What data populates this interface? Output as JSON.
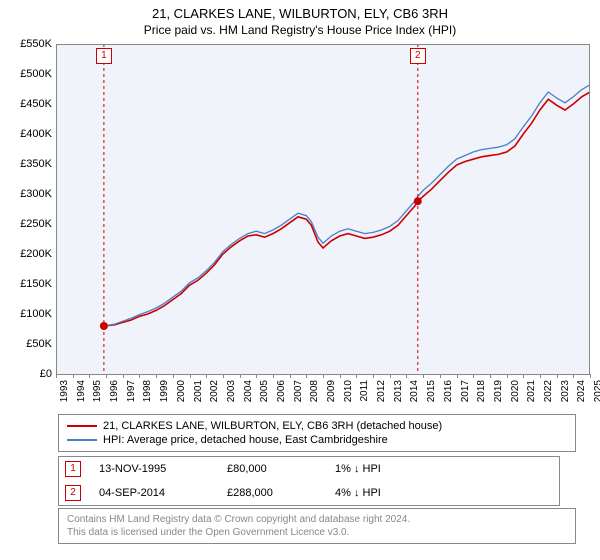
{
  "title": "21, CLARKES LANE, WILBURTON, ELY, CB6 3RH",
  "subtitle": "Price paid vs. HM Land Registry's House Price Index (HPI)",
  "chart": {
    "type": "line",
    "background_color": "#f0f4fa",
    "grid_color": "#e5e5e5",
    "axis_color": "#888888",
    "text_color": "#000000",
    "title_fontsize": 13,
    "subtitle_fontsize": 12,
    "tick_fontsize": 11,
    "x_tick_fontsize": 10,
    "ylim": [
      0,
      550000
    ],
    "ytick_step": 50000,
    "y_ticks": [
      "£0",
      "£50K",
      "£100K",
      "£150K",
      "£200K",
      "£250K",
      "£300K",
      "£350K",
      "£400K",
      "£450K",
      "£500K",
      "£550K"
    ],
    "xlim": [
      1993,
      2025
    ],
    "x_ticks": [
      1993,
      1994,
      1995,
      1996,
      1997,
      1998,
      1999,
      2000,
      2001,
      2002,
      2003,
      2004,
      2005,
      2006,
      2007,
      2008,
      2009,
      2010,
      2011,
      2012,
      2013,
      2014,
      2015,
      2016,
      2017,
      2018,
      2019,
      2020,
      2021,
      2022,
      2023,
      2024,
      2025
    ],
    "series": [
      {
        "name": "21, CLARKES LANE, WILBURTON, ELY, CB6 3RH (detached house)",
        "color": "#cc0000",
        "line_width": 1.6,
        "data": [
          [
            1995.87,
            80000
          ],
          [
            1996.5,
            82000
          ],
          [
            1997,
            86000
          ],
          [
            1997.5,
            90000
          ],
          [
            1998,
            96000
          ],
          [
            1998.5,
            100000
          ],
          [
            1999,
            106000
          ],
          [
            1999.5,
            114000
          ],
          [
            2000,
            124000
          ],
          [
            2000.5,
            134000
          ],
          [
            2001,
            148000
          ],
          [
            2001.5,
            156000
          ],
          [
            2002,
            168000
          ],
          [
            2002.5,
            182000
          ],
          [
            2003,
            200000
          ],
          [
            2003.5,
            212000
          ],
          [
            2004,
            222000
          ],
          [
            2004.5,
            230000
          ],
          [
            2005,
            232000
          ],
          [
            2005.5,
            228000
          ],
          [
            2006,
            234000
          ],
          [
            2006.5,
            242000
          ],
          [
            2007,
            252000
          ],
          [
            2007.5,
            262000
          ],
          [
            2008,
            258000
          ],
          [
            2008.3,
            248000
          ],
          [
            2008.7,
            220000
          ],
          [
            2009,
            210000
          ],
          [
            2009.5,
            222000
          ],
          [
            2010,
            230000
          ],
          [
            2010.5,
            234000
          ],
          [
            2011,
            230000
          ],
          [
            2011.5,
            226000
          ],
          [
            2012,
            228000
          ],
          [
            2012.5,
            232000
          ],
          [
            2013,
            238000
          ],
          [
            2013.5,
            248000
          ],
          [
            2014,
            264000
          ],
          [
            2014.5,
            280000
          ],
          [
            2014.68,
            288000
          ],
          [
            2015,
            296000
          ],
          [
            2015.5,
            308000
          ],
          [
            2016,
            322000
          ],
          [
            2016.5,
            336000
          ],
          [
            2017,
            348000
          ],
          [
            2017.5,
            354000
          ],
          [
            2018,
            358000
          ],
          [
            2018.5,
            362000
          ],
          [
            2019,
            364000
          ],
          [
            2019.5,
            366000
          ],
          [
            2020,
            370000
          ],
          [
            2020.5,
            380000
          ],
          [
            2021,
            400000
          ],
          [
            2021.5,
            418000
          ],
          [
            2022,
            440000
          ],
          [
            2022.5,
            458000
          ],
          [
            2023,
            448000
          ],
          [
            2023.5,
            440000
          ],
          [
            2024,
            450000
          ],
          [
            2024.5,
            462000
          ],
          [
            2025,
            470000
          ]
        ]
      },
      {
        "name": "HPI: Average price, detached house, East Cambridgeshire",
        "color": "#4a7ec8",
        "line_width": 1.3,
        "data": [
          [
            1995.87,
            80000
          ],
          [
            1996.5,
            83000
          ],
          [
            1997,
            88000
          ],
          [
            1997.5,
            93000
          ],
          [
            1998,
            99000
          ],
          [
            1998.5,
            104000
          ],
          [
            1999,
            110000
          ],
          [
            1999.5,
            118000
          ],
          [
            2000,
            128000
          ],
          [
            2000.5,
            138000
          ],
          [
            2001,
            152000
          ],
          [
            2001.5,
            160000
          ],
          [
            2002,
            172000
          ],
          [
            2002.5,
            186000
          ],
          [
            2003,
            204000
          ],
          [
            2003.5,
            216000
          ],
          [
            2004,
            226000
          ],
          [
            2004.5,
            234000
          ],
          [
            2005,
            238000
          ],
          [
            2005.5,
            234000
          ],
          [
            2006,
            240000
          ],
          [
            2006.5,
            248000
          ],
          [
            2007,
            258000
          ],
          [
            2007.5,
            268000
          ],
          [
            2008,
            264000
          ],
          [
            2008.3,
            254000
          ],
          [
            2008.7,
            228000
          ],
          [
            2009,
            218000
          ],
          [
            2009.5,
            230000
          ],
          [
            2010,
            238000
          ],
          [
            2010.5,
            242000
          ],
          [
            2011,
            238000
          ],
          [
            2011.5,
            234000
          ],
          [
            2012,
            236000
          ],
          [
            2012.5,
            240000
          ],
          [
            2013,
            246000
          ],
          [
            2013.5,
            256000
          ],
          [
            2014,
            272000
          ],
          [
            2014.5,
            288000
          ],
          [
            2014.68,
            296000
          ],
          [
            2015,
            306000
          ],
          [
            2015.5,
            318000
          ],
          [
            2016,
            332000
          ],
          [
            2016.5,
            346000
          ],
          [
            2017,
            358000
          ],
          [
            2017.5,
            364000
          ],
          [
            2018,
            370000
          ],
          [
            2018.5,
            374000
          ],
          [
            2019,
            376000
          ],
          [
            2019.5,
            378000
          ],
          [
            2020,
            382000
          ],
          [
            2020.5,
            392000
          ],
          [
            2021,
            412000
          ],
          [
            2021.5,
            430000
          ],
          [
            2022,
            452000
          ],
          [
            2022.5,
            470000
          ],
          [
            2023,
            460000
          ],
          [
            2023.5,
            452000
          ],
          [
            2024,
            462000
          ],
          [
            2024.5,
            474000
          ],
          [
            2025,
            482000
          ]
        ]
      }
    ],
    "sale_markers": [
      {
        "label": "1",
        "x": 1995.87,
        "y": 80000,
        "dot_color": "#cc0000",
        "box_border": "#cc0000",
        "vline_color": "#cc0000"
      },
      {
        "label": "2",
        "x": 2014.68,
        "y": 288000,
        "dot_color": "#cc0000",
        "box_border": "#cc0000",
        "vline_color": "#cc0000"
      }
    ]
  },
  "legend": {
    "rows": [
      {
        "color": "#cc0000",
        "label": "21, CLARKES LANE, WILBURTON, ELY, CB6 3RH (detached house)"
      },
      {
        "color": "#4a7ec8",
        "label": "HPI: Average price, detached house, East Cambridgeshire"
      }
    ]
  },
  "sales": [
    {
      "marker": "1",
      "marker_color": "#cc0000",
      "date": "13-NOV-1995",
      "price": "£80,000",
      "pct": "1% ↓ HPI"
    },
    {
      "marker": "2",
      "marker_color": "#cc0000",
      "date": "04-SEP-2014",
      "price": "£288,000",
      "pct": "4% ↓ HPI"
    }
  ],
  "footnote": {
    "line1": "Contains HM Land Registry data © Crown copyright and database right 2024.",
    "line2": "This data is licensed under the Open Government Licence v3.0."
  }
}
